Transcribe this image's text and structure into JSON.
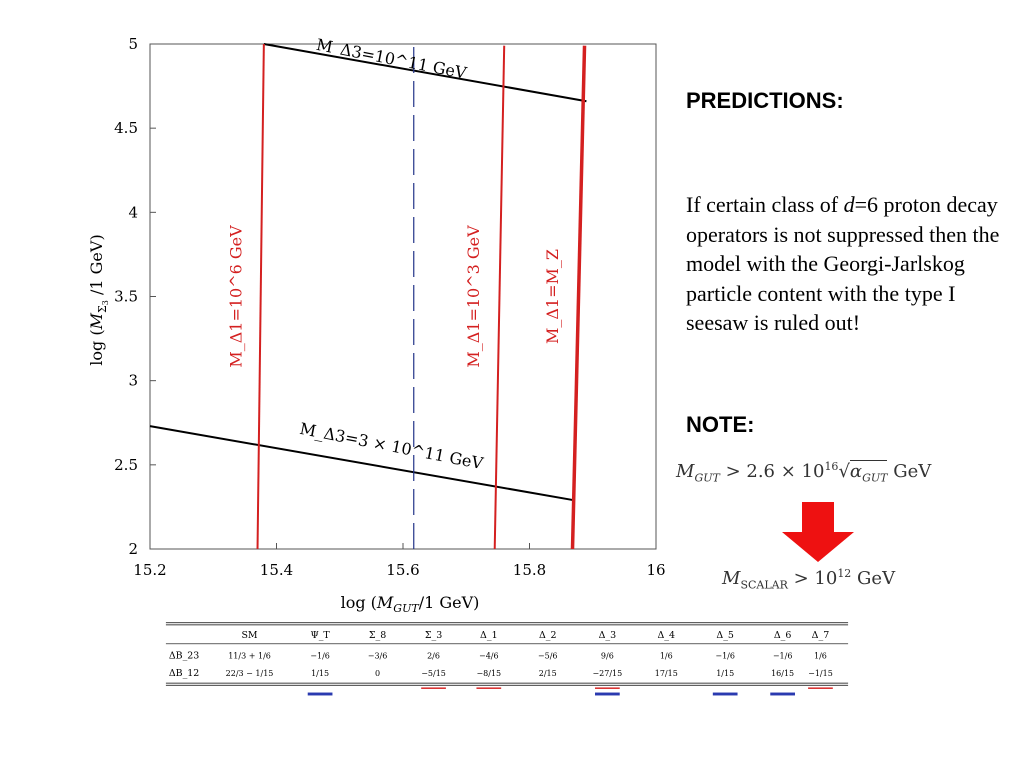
{
  "chart_data": {
    "type": "line",
    "xlabel": "log (M_GUT/1 GeV)",
    "ylabel": "log (M_Σ3 /1 GeV)",
    "xlim": [
      15.2,
      16.0
    ],
    "ylim": [
      2.0,
      5.0
    ],
    "xticks": [
      "15.2",
      "15.4",
      "15.6",
      "15.8",
      "16"
    ],
    "yticks": [
      "2",
      "2.5",
      "3",
      "3.5",
      "4",
      "4.5",
      "5"
    ],
    "series": [
      {
        "name": "M_Δ3=10^11 GeV",
        "color": "#000000",
        "points": [
          [
            15.38,
            5.0
          ],
          [
            15.89,
            4.66
          ]
        ],
        "label_pos": [
          15.58,
          4.88
        ],
        "label_rot": 11
      },
      {
        "name": "M_Δ3=3 × 10^11 GeV",
        "color": "#000000",
        "points": [
          [
            15.2,
            2.73
          ],
          [
            15.87,
            2.29
          ]
        ],
        "label_pos": [
          15.58,
          2.58
        ],
        "label_rot": 11
      },
      {
        "name": "M_Δ1=10^6 GeV",
        "color": "#d42020",
        "points": [
          [
            15.37,
            2.0
          ],
          [
            15.38,
            5.0
          ]
        ],
        "label_pos": [
          15.345,
          3.5
        ],
        "label_rot": -90
      },
      {
        "name": "M_Δ1=10^3 GeV",
        "color": "#d42020",
        "points": [
          [
            15.745,
            2.0
          ],
          [
            15.76,
            4.99
          ]
        ],
        "label_pos": [
          15.72,
          3.5
        ],
        "label_rot": -90
      },
      {
        "name": "M_Δ1=M_Z",
        "color": "#d42020",
        "points": [
          [
            15.868,
            2.0
          ],
          [
            15.887,
            4.99
          ]
        ],
        "label_pos": [
          15.845,
          3.5
        ],
        "label_rot": -90
      },
      {
        "name": "",
        "color": "#223388",
        "dashed": true,
        "points": [
          [
            15.617,
            2.0
          ],
          [
            15.617,
            4.99
          ]
        ]
      }
    ]
  },
  "text": {
    "predictions": "PREDICTIONS:",
    "para_1": "If certain class of ",
    "para_d": "d",
    "para_2": "=6 proton decay operators is not suppressed then the model with the Georgi-Jarlskog particle content with the type I seesaw is ruled out!",
    "note": "NOTE:",
    "mgut_lhs": "M",
    "mgut_sub": "GUT",
    "mgut_mid": " > 2.6 × 10",
    "mgut_exp": "16",
    "mgut_sqrt": "α",
    "mgut_sqrt_sub": "GUT",
    "mgut_unit": " GeV",
    "mscalar_lhs": "M",
    "mscalar_sub": "SCALAR",
    "mscalar_mid": " > 10",
    "mscalar_exp": "12",
    "mscalar_unit": " GeV"
  },
  "colors": {
    "red": "#d42020",
    "blue": "#2a3ab0",
    "arrow": "#ee1111"
  },
  "table": {
    "headers": [
      "SM",
      "Ψ_T",
      "Σ_8",
      "Σ_3",
      "Δ_1",
      "Δ_2",
      "Δ_3",
      "Δ_4",
      "Δ_5",
      "Δ_6",
      "Δ_7"
    ],
    "row_labels": [
      "ΔB_23",
      "ΔB_12"
    ],
    "rows": [
      [
        "11/3 + 1/6",
        "−1/6",
        "−3/6",
        "2/6",
        "−4/6",
        "−5/6",
        "9/6",
        "1/6",
        "−1/6",
        "−1/6",
        "1/6"
      ],
      [
        "22/3 − 1/15",
        "1/15",
        "0",
        "−5/15",
        "−8/15",
        "2/15",
        "−27/15",
        "17/15",
        "1/15",
        "16/15",
        "−1/15"
      ]
    ],
    "markers": [
      {
        "col": 1,
        "color": "blue"
      },
      {
        "col": 3,
        "color": "red"
      },
      {
        "col": 4,
        "color": "red"
      },
      {
        "col": 6,
        "color": "red"
      },
      {
        "col": 6,
        "color": "blue"
      },
      {
        "col": 8,
        "color": "blue"
      },
      {
        "col": 9,
        "color": "blue"
      },
      {
        "col": 10,
        "color": "red"
      }
    ]
  }
}
